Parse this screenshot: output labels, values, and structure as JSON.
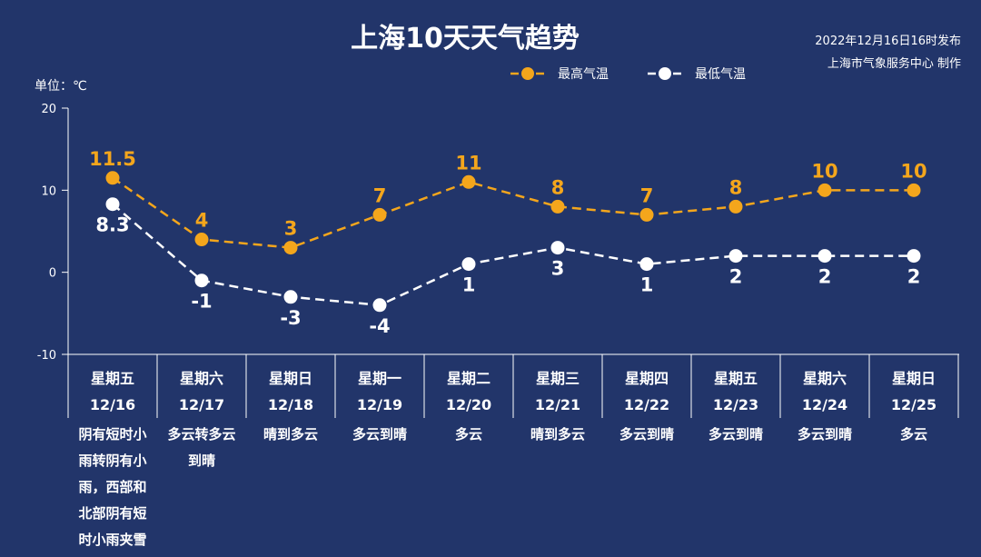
{
  "header": {
    "title": "上海10天天气趋势",
    "issued": "2022年12月16日16时发布",
    "producer": "上海市气象服务中心 制作"
  },
  "unit_label": "单位：℃",
  "colors": {
    "background": "#22356a",
    "high": "#f4a61c",
    "low": "#ffffff",
    "axis": "#ffffff"
  },
  "chart_data": {
    "type": "line",
    "title": "上海10天天气趋势",
    "ylabel": "单位：℃",
    "ylim": [
      -10,
      20
    ],
    "yticks": [
      20,
      10,
      0,
      -10
    ],
    "ytick_labels": [
      "20",
      "10",
      "0",
      "-10"
    ],
    "grid": false,
    "legend": "top",
    "days": [
      "星期五",
      "星期六",
      "星期日",
      "星期一",
      "星期二",
      "星期三",
      "星期四",
      "星期五",
      "星期六",
      "星期日"
    ],
    "categories": [
      "12/16",
      "12/17",
      "12/18",
      "12/19",
      "12/20",
      "12/21",
      "12/22",
      "12/23",
      "12/24",
      "12/25"
    ],
    "weather": [
      [
        "阴有短时小",
        "雨转阴有小",
        "雨，西部和",
        "北部阴有短",
        "时小雨夹雪"
      ],
      [
        "多云转多云",
        "到晴"
      ],
      [
        "晴到多云"
      ],
      [
        "多云到晴"
      ],
      [
        "多云"
      ],
      [
        "晴到多云"
      ],
      [
        "多云到晴"
      ],
      [
        "多云到晴"
      ],
      [
        "多云到晴"
      ],
      [
        "多云"
      ]
    ],
    "series": [
      {
        "name": "最高气温",
        "values": [
          11.5,
          4,
          3,
          7,
          11,
          8,
          7,
          8,
          10,
          10
        ],
        "labels": [
          "11.5",
          "4",
          "3",
          "7",
          "11",
          "8",
          "7",
          "8",
          "10",
          "10"
        ]
      },
      {
        "name": "最低气温",
        "values": [
          8.3,
          -1,
          -3,
          -4,
          1,
          3,
          1,
          2,
          2,
          2
        ],
        "labels": [
          "8.3",
          "-1",
          "-3",
          "-4",
          "1",
          "3",
          "1",
          "2",
          "2",
          "2"
        ]
      }
    ]
  }
}
